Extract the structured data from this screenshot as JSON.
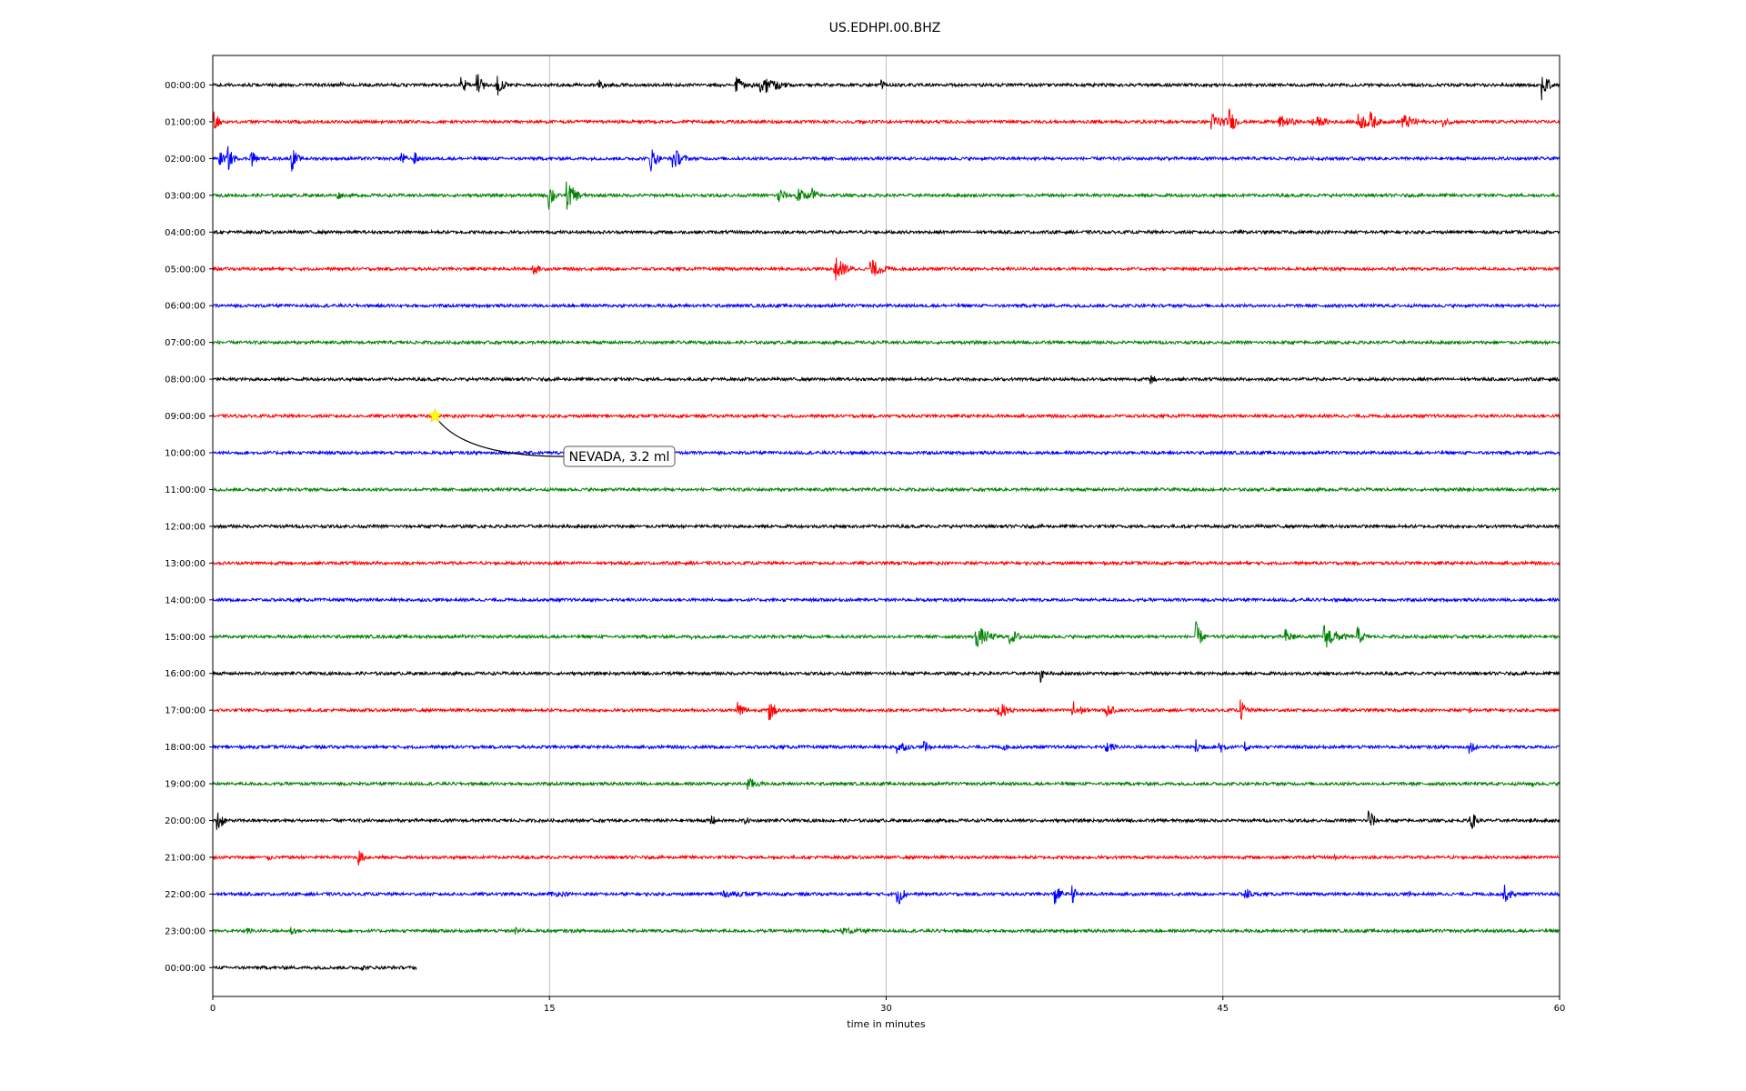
{
  "chart_data": {
    "type": "line",
    "title": "US.EDHPI.00.BHZ",
    "xlabel": "time in minutes",
    "ylabel": "",
    "xlim": [
      0,
      60
    ],
    "xticks": [
      0,
      15,
      30,
      45,
      60
    ],
    "xtick_labels": [
      "0",
      "15",
      "30",
      "45",
      "60"
    ],
    "grid": "vertical-only",
    "trace_colors": [
      "#000000",
      "#ff0000",
      "#0000ff",
      "#008000"
    ],
    "rows": [
      {
        "label": "00:00:00",
        "end_minute": 60,
        "events": [
          {
            "t": 5.7,
            "a": 0.5,
            "d": 0.4
          },
          {
            "t": 11.1,
            "a": 1.5,
            "d": 0.4
          },
          {
            "t": 11.8,
            "a": 1.8,
            "d": 0.5
          },
          {
            "t": 12.7,
            "a": 1.6,
            "d": 0.6
          },
          {
            "t": 17.2,
            "a": 1.2,
            "d": 0.3
          },
          {
            "t": 23.3,
            "a": 1.3,
            "d": 1.0
          },
          {
            "t": 24.4,
            "a": 1.8,
            "d": 1.5
          },
          {
            "t": 29.8,
            "a": 0.8,
            "d": 0.3
          },
          {
            "t": 59.2,
            "a": 2.3,
            "d": 0.6
          }
        ]
      },
      {
        "label": "01:00:00",
        "end_minute": 60,
        "events": [
          {
            "t": 0.1,
            "a": 1.7,
            "d": 0.3
          },
          {
            "t": 44.5,
            "a": 1.3,
            "d": 1.5
          },
          {
            "t": 45.3,
            "a": 2.0,
            "d": 0.5
          },
          {
            "t": 47.5,
            "a": 1.0,
            "d": 1.5
          },
          {
            "t": 49.0,
            "a": 1.0,
            "d": 1.5
          },
          {
            "t": 51.0,
            "a": 1.3,
            "d": 1.5
          },
          {
            "t": 51.5,
            "a": 2.0,
            "d": 0.6
          },
          {
            "t": 53.0,
            "a": 1.2,
            "d": 1.5
          },
          {
            "t": 54.8,
            "a": 0.8,
            "d": 0.8
          }
        ]
      },
      {
        "label": "02:00:00",
        "end_minute": 60,
        "events": [
          {
            "t": 0.3,
            "a": 1.2,
            "d": 0.5
          },
          {
            "t": 0.7,
            "a": 1.8,
            "d": 0.4
          },
          {
            "t": 1.7,
            "a": 2.0,
            "d": 0.3
          },
          {
            "t": 3.5,
            "a": 2.1,
            "d": 0.4
          },
          {
            "t": 8.4,
            "a": 1.3,
            "d": 0.3
          },
          {
            "t": 9.0,
            "a": 1.0,
            "d": 0.4
          },
          {
            "t": 19.5,
            "a": 2.1,
            "d": 0.5
          },
          {
            "t": 20.5,
            "a": 1.8,
            "d": 0.8
          },
          {
            "t": 42.5,
            "a": 0.4,
            "d": 0.4
          }
        ]
      },
      {
        "label": "03:00:00",
        "end_minute": 60,
        "events": [
          {
            "t": 5.6,
            "a": 0.6,
            "d": 0.5
          },
          {
            "t": 15.0,
            "a": 2.2,
            "d": 0.4
          },
          {
            "t": 15.8,
            "a": 2.1,
            "d": 0.8
          },
          {
            "t": 25.2,
            "a": 1.6,
            "d": 0.5
          },
          {
            "t": 26.0,
            "a": 1.3,
            "d": 1.0
          },
          {
            "t": 26.7,
            "a": 1.7,
            "d": 0.3
          }
        ]
      },
      {
        "label": "04:00:00",
        "end_minute": 60,
        "events": []
      },
      {
        "label": "05:00:00",
        "end_minute": 60,
        "events": [
          {
            "t": 14.3,
            "a": 0.8,
            "d": 0.7
          },
          {
            "t": 27.7,
            "a": 2.0,
            "d": 1.0
          },
          {
            "t": 29.3,
            "a": 1.5,
            "d": 1.2
          }
        ]
      },
      {
        "label": "06:00:00",
        "end_minute": 60,
        "events": []
      },
      {
        "label": "07:00:00",
        "end_minute": 60,
        "events": []
      },
      {
        "label": "08:00:00",
        "end_minute": 60,
        "events": [
          {
            "t": 41.8,
            "a": 0.8,
            "d": 0.5
          }
        ]
      },
      {
        "label": "09:00:00",
        "end_minute": 60,
        "events": []
      },
      {
        "label": "10:00:00",
        "end_minute": 60,
        "events": []
      },
      {
        "label": "11:00:00",
        "end_minute": 60,
        "events": []
      },
      {
        "label": "12:00:00",
        "end_minute": 60,
        "events": []
      },
      {
        "label": "13:00:00",
        "end_minute": 60,
        "events": [
          {
            "t": 6.3,
            "a": 0.4,
            "d": 0.3
          }
        ]
      },
      {
        "label": "14:00:00",
        "end_minute": 60,
        "events": []
      },
      {
        "label": "15:00:00",
        "end_minute": 60,
        "events": [
          {
            "t": 21.3,
            "a": 0.4,
            "d": 0.3
          },
          {
            "t": 34.0,
            "a": 1.8,
            "d": 1.2
          },
          {
            "t": 35.5,
            "a": 1.2,
            "d": 1.0
          },
          {
            "t": 43.8,
            "a": 2.2,
            "d": 0.5
          },
          {
            "t": 47.8,
            "a": 1.2,
            "d": 0.8
          },
          {
            "t": 49.5,
            "a": 2.0,
            "d": 1.2
          },
          {
            "t": 51.0,
            "a": 1.5,
            "d": 0.5
          }
        ]
      },
      {
        "label": "16:00:00",
        "end_minute": 60,
        "events": [
          {
            "t": 19.2,
            "a": 0.4,
            "d": 0.3
          },
          {
            "t": 36.9,
            "a": 1.5,
            "d": 0.2
          }
        ]
      },
      {
        "label": "17:00:00",
        "end_minute": 60,
        "events": [
          {
            "t": 23.4,
            "a": 1.6,
            "d": 0.5
          },
          {
            "t": 24.8,
            "a": 1.6,
            "d": 0.7
          },
          {
            "t": 35.0,
            "a": 1.3,
            "d": 1.0
          },
          {
            "t": 38.3,
            "a": 1.6,
            "d": 0.8
          },
          {
            "t": 39.8,
            "a": 1.0,
            "d": 0.8
          },
          {
            "t": 45.8,
            "a": 1.6,
            "d": 0.5
          },
          {
            "t": 56.0,
            "a": 0.5,
            "d": 0.3
          }
        ]
      },
      {
        "label": "18:00:00",
        "end_minute": 60,
        "events": [
          {
            "t": 30.5,
            "a": 1.2,
            "d": 0.8
          },
          {
            "t": 31.7,
            "a": 1.0,
            "d": 0.5
          },
          {
            "t": 35.2,
            "a": 0.7,
            "d": 0.4
          },
          {
            "t": 39.8,
            "a": 1.0,
            "d": 0.8
          },
          {
            "t": 43.8,
            "a": 1.2,
            "d": 0.6
          },
          {
            "t": 44.8,
            "a": 1.2,
            "d": 0.7
          },
          {
            "t": 46.0,
            "a": 1.0,
            "d": 0.3
          },
          {
            "t": 56.0,
            "a": 1.0,
            "d": 0.6
          }
        ]
      },
      {
        "label": "19:00:00",
        "end_minute": 60,
        "events": [
          {
            "t": 23.8,
            "a": 1.1,
            "d": 1.0
          },
          {
            "t": 58.8,
            "a": 0.5,
            "d": 0.3
          }
        ]
      },
      {
        "label": "20:00:00",
        "end_minute": 60,
        "events": [
          {
            "t": 0.2,
            "a": 2.2,
            "d": 0.4
          },
          {
            "t": 22.2,
            "a": 1.4,
            "d": 0.2
          },
          {
            "t": 23.7,
            "a": 0.6,
            "d": 0.6
          },
          {
            "t": 51.5,
            "a": 2.0,
            "d": 0.4
          },
          {
            "t": 56.0,
            "a": 1.8,
            "d": 0.5
          },
          {
            "t": 58.7,
            "a": 0.4,
            "d": 0.3
          }
        ]
      },
      {
        "label": "21:00:00",
        "end_minute": 60,
        "events": [
          {
            "t": 2.5,
            "a": 0.6,
            "d": 0.3
          },
          {
            "t": 6.5,
            "a": 1.2,
            "d": 0.5
          },
          {
            "t": 50.0,
            "a": 0.4,
            "d": 0.4
          }
        ]
      },
      {
        "label": "22:00:00",
        "end_minute": 60,
        "events": [
          {
            "t": 15.0,
            "a": 0.4,
            "d": 6.0
          },
          {
            "t": 22.5,
            "a": 0.5,
            "d": 6.0
          },
          {
            "t": 30.5,
            "a": 2.0,
            "d": 0.5
          },
          {
            "t": 37.5,
            "a": 2.0,
            "d": 0.4
          },
          {
            "t": 38.3,
            "a": 1.4,
            "d": 0.3
          },
          {
            "t": 46.0,
            "a": 1.2,
            "d": 0.5
          },
          {
            "t": 53.3,
            "a": 0.4,
            "d": 0.4
          },
          {
            "t": 57.5,
            "a": 1.6,
            "d": 0.6
          }
        ]
      },
      {
        "label": "23:00:00",
        "end_minute": 60,
        "events": [
          {
            "t": 1.5,
            "a": 0.6,
            "d": 0.6
          },
          {
            "t": 3.5,
            "a": 0.8,
            "d": 0.5
          },
          {
            "t": 13.5,
            "a": 0.6,
            "d": 1.0
          },
          {
            "t": 28.0,
            "a": 0.5,
            "d": 4.0
          }
        ]
      },
      {
        "label": "00:00:00",
        "end_minute": 9.1,
        "events": [
          {
            "t": 6.7,
            "a": 0.5,
            "d": 0.3
          }
        ]
      }
    ],
    "annotation": {
      "text": "NEVADA, 3.2 ml",
      "marker": "star",
      "marker_color": "#ffff00",
      "row_label": "09:00:00",
      "minute": 9.9
    }
  }
}
